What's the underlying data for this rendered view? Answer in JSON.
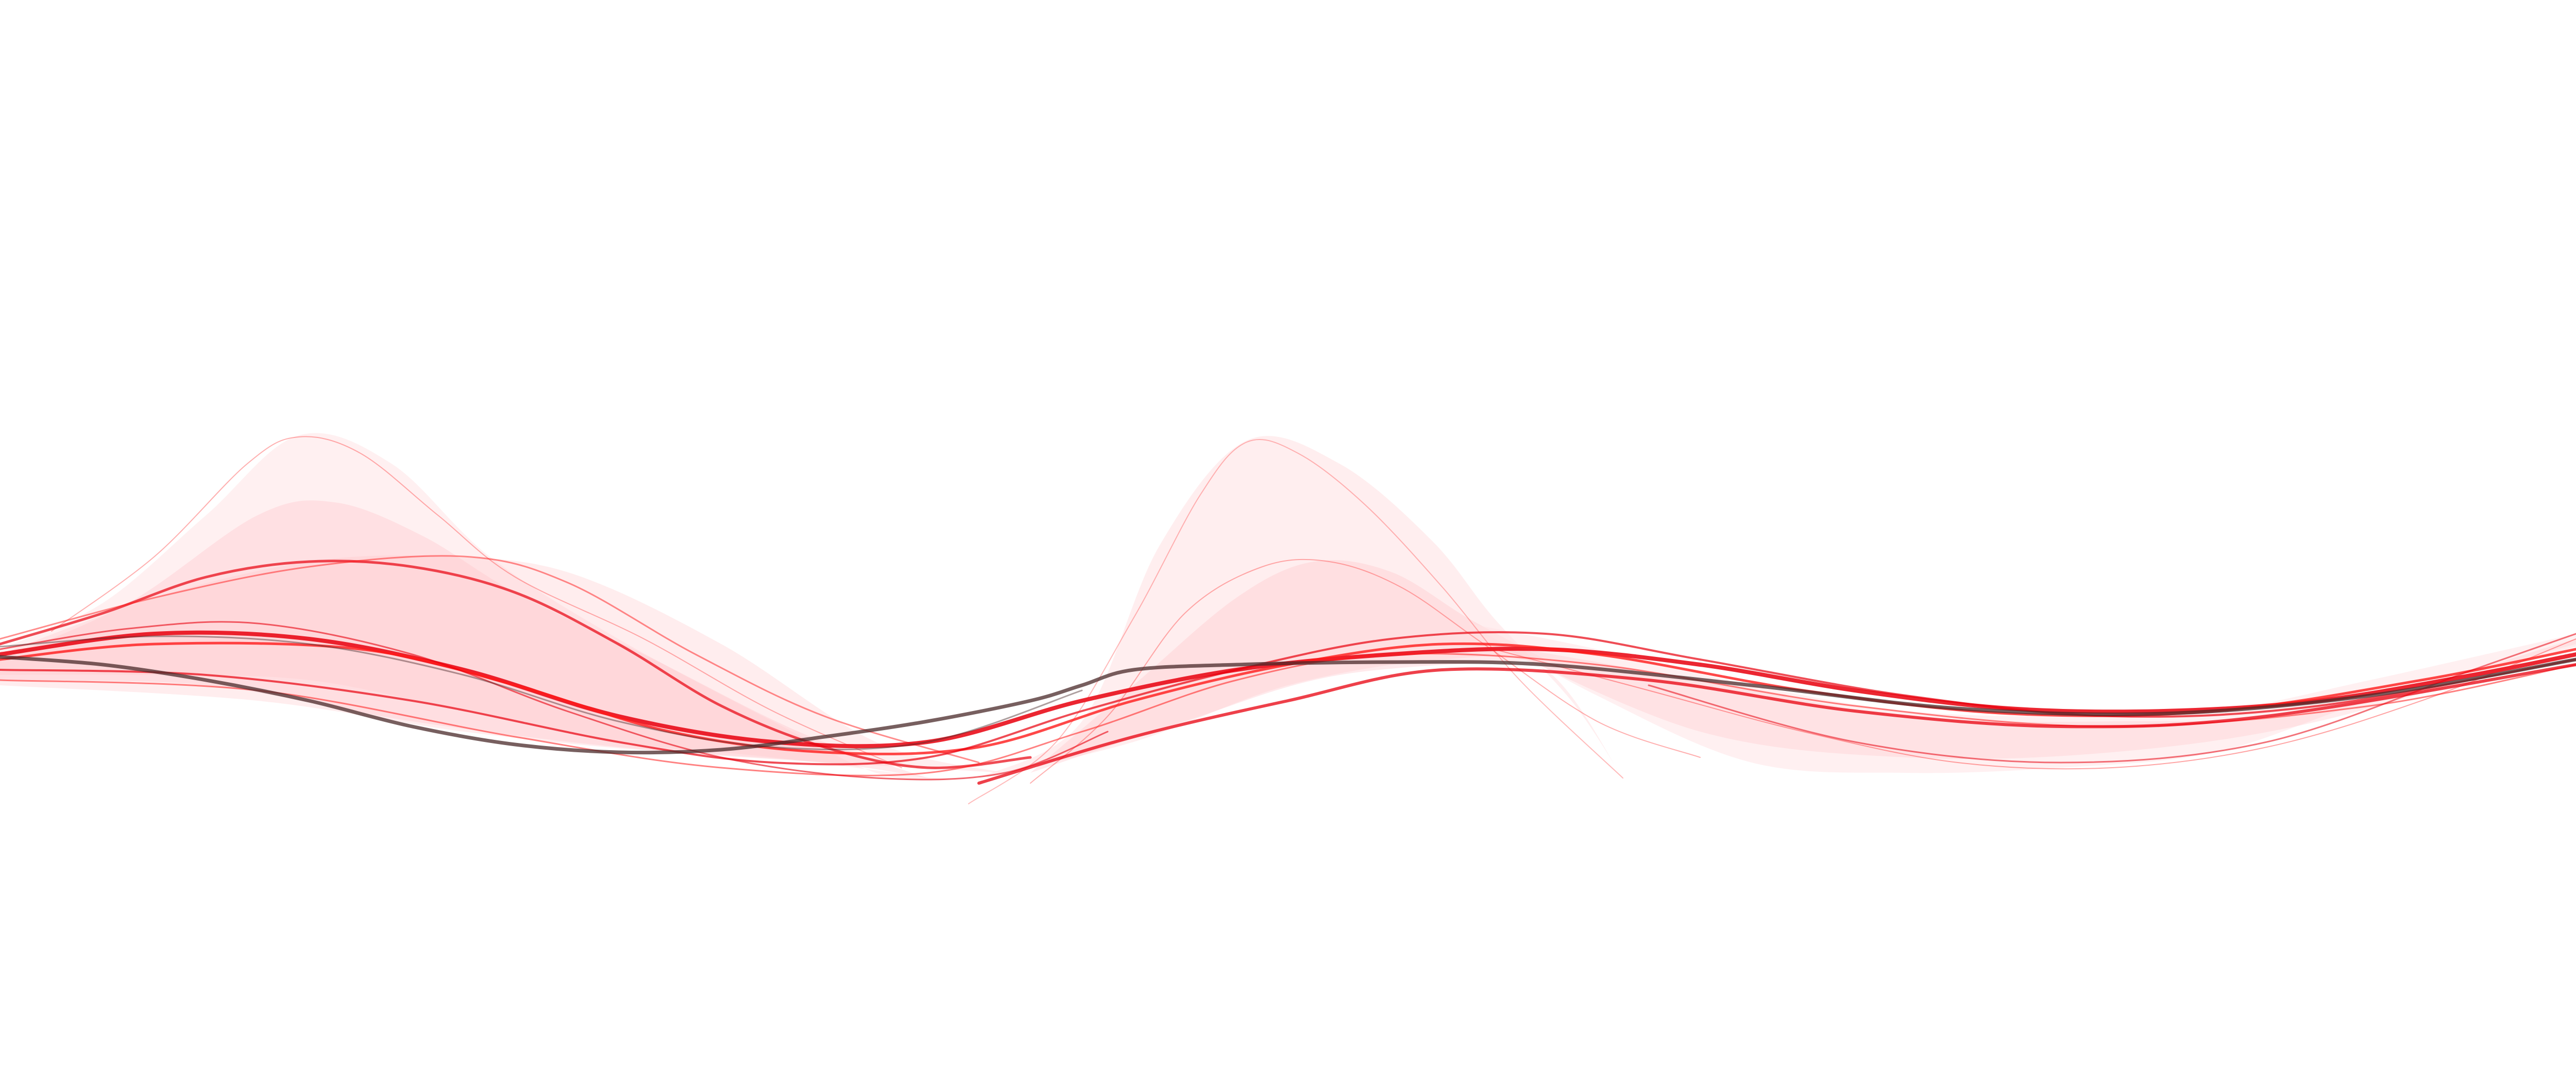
{
  "artwork": {
    "kind": "abstract flowing wave ribbons",
    "background_color": "#ffffff",
    "palette": {
      "primary_red": "#e8000d",
      "bright_red": "#ff1a1a",
      "soft_pink": "#ffc4c8",
      "pale_pink": "#ffe3e5",
      "dark_accent": "#4a2a2a"
    },
    "text": []
  }
}
